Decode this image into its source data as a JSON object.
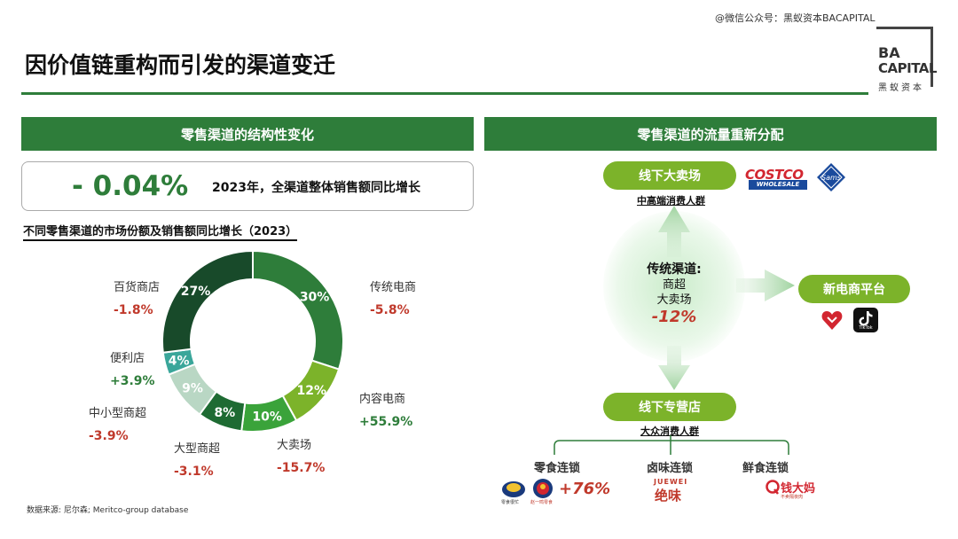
{
  "watermark": "@微信公众号：黑蚁资本BACAPITAL",
  "page_title": "因价值链重构而引发的渠道变迁",
  "logo": {
    "line1": "BA",
    "line2": "CAPITAL",
    "line3": "黑蚁资本"
  },
  "left_panel": {
    "header": "零售渠道的结构性变化",
    "summary_value": "- 0.04%",
    "summary_text": "2023年，全渠道整体销售额同比增长",
    "subtitle": "不同零售渠道的市场份额及销售额同比增长（2023）"
  },
  "chart_data": {
    "type": "pie",
    "variant": "donut",
    "title": "不同零售渠道的市场份额及销售额同比增长（2023）",
    "categories": [
      "传统电商",
      "内容电商",
      "大卖场",
      "大型商超",
      "中小型商超",
      "便利店",
      "百货商店"
    ],
    "values": [
      30,
      12,
      10,
      8,
      9,
      4,
      27
    ],
    "slice_labels": [
      "30%",
      "12%",
      "10%",
      "8%",
      "9%",
      "4%",
      "27%"
    ],
    "growth_labels": [
      "-5.8%",
      "+55.9%",
      "-15.7%",
      "-3.1%",
      "-3.9%",
      "+3.9%",
      "-1.8%"
    ],
    "growth_values": [
      -5.8,
      55.9,
      -15.7,
      -3.1,
      -3.9,
      3.9,
      -1.8
    ],
    "colors": [
      "#2e7d3a",
      "#7cb32a",
      "#3aa33a",
      "#1e6b33",
      "#b9d7c4",
      "#3aa69a",
      "#184a2a"
    ],
    "legend": "none"
  },
  "source": "数据来源: 尼尔森; Meritco-group database",
  "right_panel": {
    "header": "零售渠道的流量重新分配",
    "top_pill": "线下大卖场",
    "top_caption": "中高端消费人群",
    "new_pill": "新电商平台",
    "bottom_pill": "线下专营店",
    "bottom_caption": "大众消费人群",
    "center_title": "传统渠道:",
    "center_line2": "商超",
    "center_line3": "大卖场",
    "center_value": "-12%",
    "costco_main": "COSTCO",
    "costco_sub": "WHOLESALE",
    "sams": "Sams",
    "tiktok": "TikTok",
    "categories": [
      "零食连锁",
      "卤味连锁",
      "鲜食连锁"
    ],
    "snack_caption1": "零食很忙",
    "snack_caption2": "赵一鸣零食",
    "snack_growth": "+76%",
    "juewei_en": "JUEWEI",
    "juewei_cn": "绝味",
    "qdm_cn": "钱大妈",
    "qdm_caption": "不卖隔夜肉"
  }
}
